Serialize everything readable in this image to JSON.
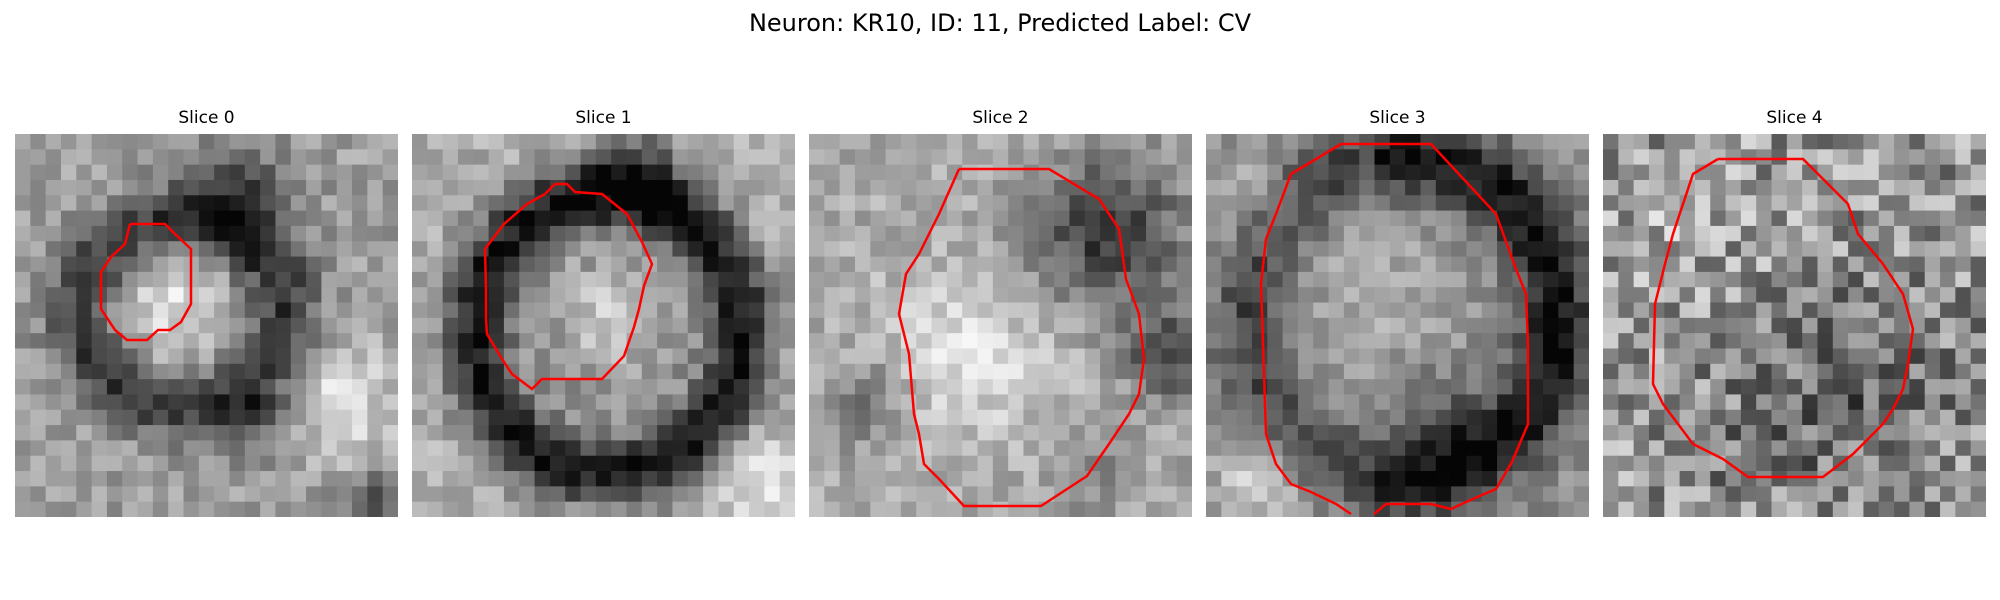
{
  "figure": {
    "title": "Neuron: KR10, ID: 11, Predicted Label: CV"
  },
  "colors": {
    "contour": "#ff0000",
    "background": "#ffffff",
    "colormap": "gray"
  },
  "panels": [
    {
      "title": "Slice 0"
    },
    {
      "title": "Slice 1"
    },
    {
      "title": "Slice 2"
    },
    {
      "title": "Slice 3"
    },
    {
      "title": "Slice 4"
    }
  ]
}
